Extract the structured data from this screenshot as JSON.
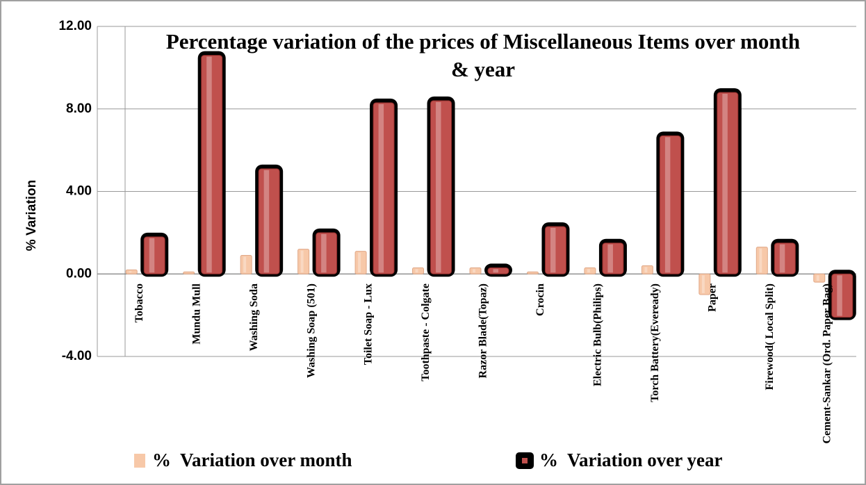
{
  "chart_data": {
    "type": "bar3d",
    "title": "Percentage variation of the prices of Miscellaneous Items over month & year",
    "y_label": "% Variation",
    "categories": [
      "Tobacco",
      "Mundu Mull",
      "Washing Soda",
      "Washing Soap (501)",
      "Toilet Soap - Lux",
      "Toothpaste - Colgate",
      "Razor Blade(Topaz)",
      "Crocin",
      "Electric Bulb(Philips)",
      "Torch Battery(Eveready)",
      "Paper",
      "Firewood( Local Split)",
      "Cement-Sankar (Ord. Paper Bag)"
    ],
    "series": [
      {
        "name": "%  Variation over month",
        "color": "#f7c8a8",
        "values": [
          0.2,
          0.1,
          0.9,
          1.2,
          1.1,
          0.3,
          0.3,
          0.1,
          0.3,
          0.4,
          -1.0,
          1.3,
          -0.4
        ]
      },
      {
        "name": "%  Variation over year",
        "color": "#c0504d",
        "values": [
          1.8,
          10.6,
          5.1,
          2.0,
          8.3,
          8.4,
          0.3,
          2.3,
          1.5,
          6.7,
          8.8,
          1.5,
          -2.1
        ]
      }
    ],
    "ylim": [
      -4,
      12
    ],
    "yticks": [
      {
        "value": -4,
        "label": "-4.00"
      },
      {
        "value": 0,
        "label": "0.00"
      },
      {
        "value": 4,
        "label": "4.00"
      },
      {
        "value": 8,
        "label": "8.00"
      },
      {
        "value": 12,
        "label": "12.00"
      }
    ],
    "grid": true
  }
}
